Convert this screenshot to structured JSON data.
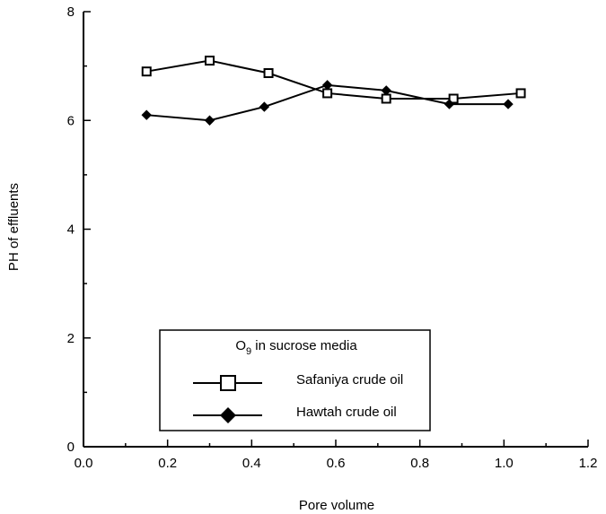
{
  "chart_data": {
    "type": "line",
    "title": "",
    "xlabel": "Pore volume",
    "ylabel": "PH of effluents",
    "xlim": [
      0.0,
      1.2
    ],
    "ylim": [
      0,
      8
    ],
    "xticks": [
      "0.0",
      "0.2",
      "0.4",
      "0.6",
      "0.8",
      "1.0",
      "1.2"
    ],
    "yticks": [
      "0",
      "2",
      "4",
      "6",
      "8"
    ],
    "grid": false,
    "legend": {
      "title_main": "O",
      "title_sub": "9",
      "title_rest": " in sucrose media",
      "placement": "bottom-center"
    },
    "series": [
      {
        "name": "Safaniya crude oil",
        "marker": "open-square",
        "x": [
          0.15,
          0.3,
          0.44,
          0.58,
          0.72,
          0.88,
          1.04
        ],
        "y": [
          6.9,
          7.1,
          6.87,
          6.5,
          6.4,
          6.4,
          6.5
        ]
      },
      {
        "name": "Hawtah crude oil",
        "marker": "filled-diamond",
        "x": [
          0.15,
          0.3,
          0.43,
          0.58,
          0.72,
          0.87,
          1.01
        ],
        "y": [
          6.1,
          6.0,
          6.25,
          6.65,
          6.55,
          6.3,
          6.3
        ]
      }
    ]
  }
}
